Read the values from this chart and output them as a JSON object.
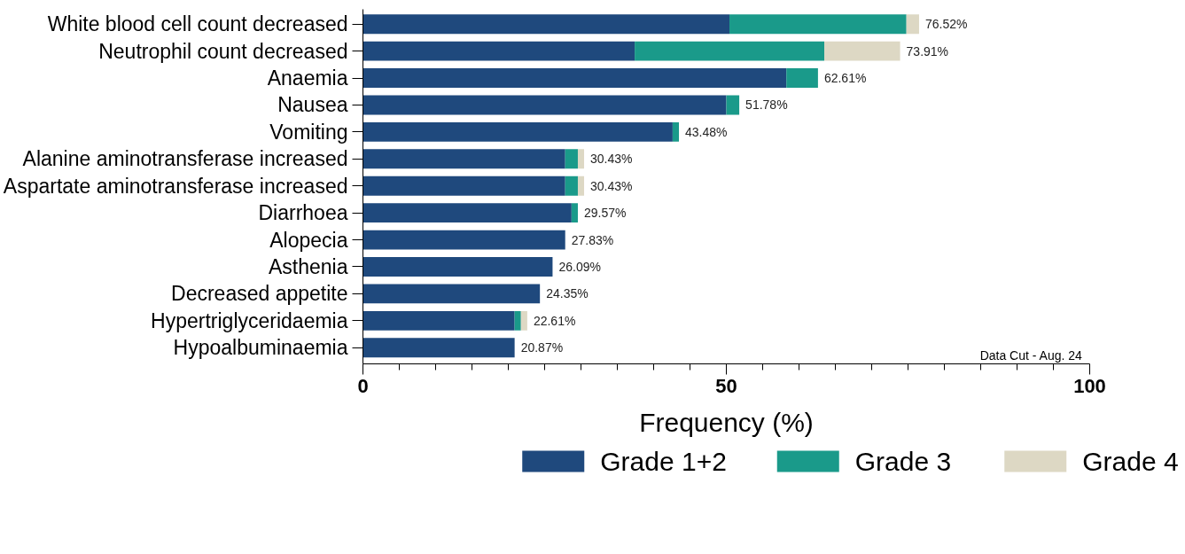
{
  "chart_data": {
    "type": "bar",
    "orientation": "horizontal",
    "stacked": true,
    "categories": [
      "White blood cell count decreased",
      "Neutrophil count decreased",
      "Anaemia",
      "Nausea",
      "Vomiting",
      "Alanine aminotransferase increased",
      "Aspartate aminotransferase increased",
      "Diarrhoea",
      "Alopecia",
      "Asthenia",
      "Decreased appetite",
      "Hypertriglyceridaemia",
      "Hypoalbuminaemia"
    ],
    "series": [
      {
        "name": "Grade 1+2",
        "color": "#1f497d",
        "values": [
          50.43,
          37.39,
          58.26,
          50.0,
          42.61,
          27.83,
          27.83,
          28.7,
          27.83,
          26.09,
          24.35,
          20.87,
          20.87
        ]
      },
      {
        "name": "Grade 3",
        "color": "#1a9a8a",
        "values": [
          24.35,
          26.09,
          4.35,
          1.78,
          0.87,
          1.74,
          1.74,
          0.87,
          0,
          0,
          0,
          0.87,
          0
        ]
      },
      {
        "name": "Grade 4",
        "color": "#ddd8c4",
        "values": [
          1.74,
          10.43,
          0,
          0,
          0,
          0.86,
          0.86,
          0,
          0,
          0,
          0,
          0.87,
          0
        ]
      }
    ],
    "totals": [
      "76.52%",
      "73.91%",
      "62.61%",
      "51.78%",
      "43.48%",
      "30.43%",
      "30.43%",
      "29.57%",
      "27.83%",
      "26.09%",
      "24.35%",
      "22.61%",
      "20.87%"
    ],
    "xlabel": "Frequency (%)",
    "xlim": [
      0,
      100
    ],
    "xticks": [
      0,
      {
        "value": 5,
        "label": null
      },
      {
        "value": 10,
        "label": null
      },
      {
        "value": 15,
        "label": null
      },
      {
        "value": 20,
        "label": null
      },
      {
        "value": 25,
        "label": null
      },
      {
        "value": 30,
        "label": null
      },
      {
        "value": 35,
        "label": null
      },
      {
        "value": 40,
        "label": null
      },
      {
        "value": 45,
        "label": null
      },
      50,
      {
        "value": 55,
        "label": null
      },
      {
        "value": 60,
        "label": null
      },
      {
        "value": 65,
        "label": null
      },
      {
        "value": 70,
        "label": null
      },
      {
        "value": 75,
        "label": null
      },
      {
        "value": 80,
        "label": null
      },
      {
        "value": 85,
        "label": null
      },
      {
        "value": 90,
        "label": null
      },
      {
        "value": 95,
        "label": null
      },
      100
    ],
    "annotations": [
      "Data Cut -  Aug. 24"
    ],
    "legend": "bottom",
    "grid": false
  }
}
